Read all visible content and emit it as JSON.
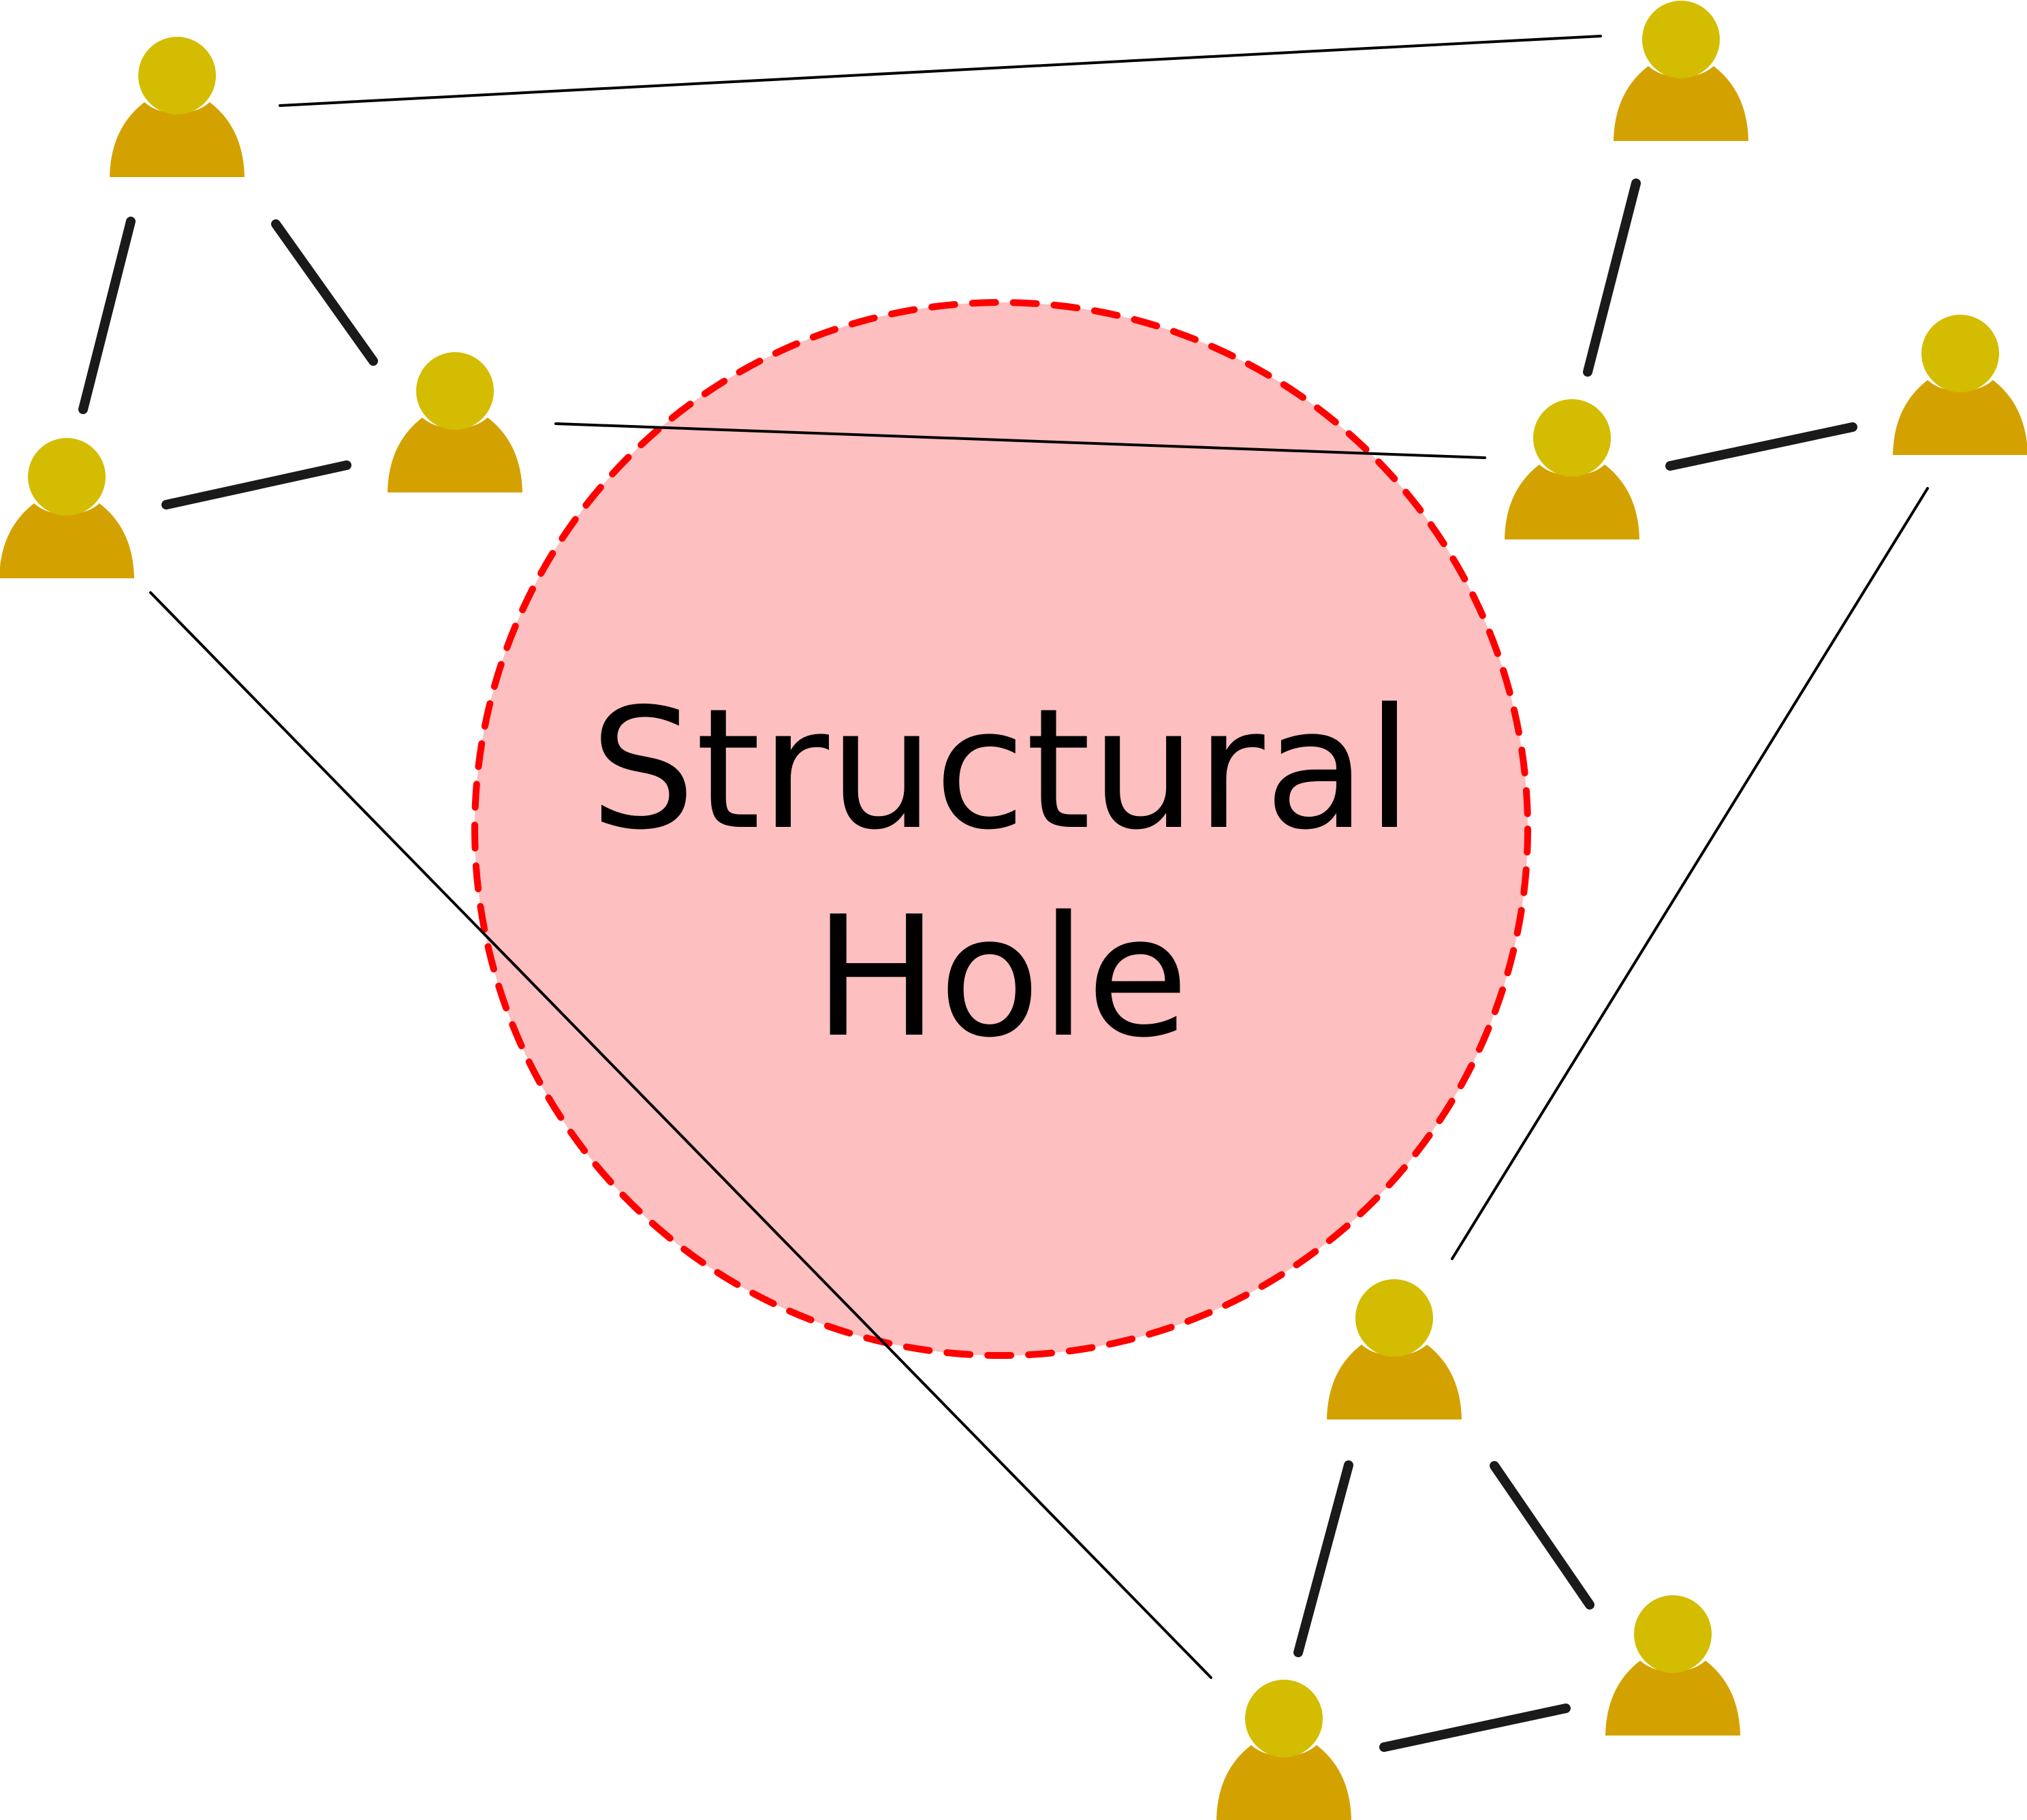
{
  "hole": {
    "label_line1": "Structural",
    "label_line2": "Hole",
    "fill_color": "#fdbfbf",
    "border_color": "#ff0000"
  },
  "colors": {
    "person_head": "#d4bc00",
    "person_body": "#d4a200",
    "edge": "#1a1a1a"
  },
  "people": [
    {
      "icon": "person-icon"
    },
    {
      "icon": "person-icon"
    },
    {
      "icon": "person-icon"
    },
    {
      "icon": "person-icon"
    },
    {
      "icon": "person-icon"
    },
    {
      "icon": "person-icon"
    },
    {
      "icon": "person-icon"
    },
    {
      "icon": "person-icon"
    },
    {
      "icon": "person-icon"
    }
  ]
}
